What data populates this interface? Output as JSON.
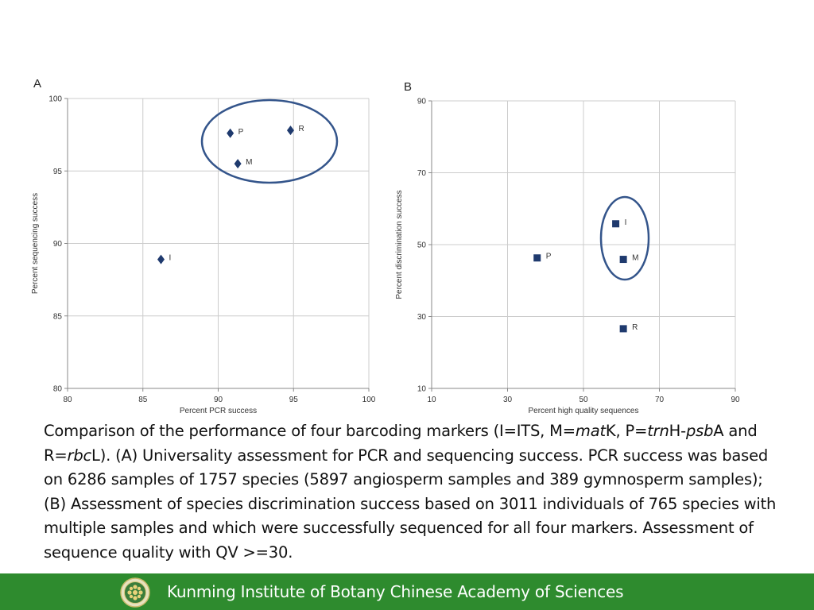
{
  "chart_data": [
    {
      "type": "scatter",
      "panel_label": "A",
      "xlabel": "Percent PCR success",
      "ylabel": "Percent sequencing success",
      "xlim": [
        80,
        100
      ],
      "ylim": [
        80,
        100
      ],
      "xticks": [
        80,
        85,
        90,
        95,
        100
      ],
      "yticks": [
        80,
        85,
        90,
        95,
        100
      ],
      "grid": true,
      "marker": "diamond",
      "points": [
        {
          "label": "P",
          "x": 90.8,
          "y": 97.6
        },
        {
          "label": "R",
          "x": 94.8,
          "y": 97.8
        },
        {
          "label": "M",
          "x": 91.3,
          "y": 95.5
        },
        {
          "label": "I",
          "x": 86.2,
          "y": 88.9
        }
      ],
      "highlight_ellipse_labels": [
        "P",
        "R",
        "M"
      ]
    },
    {
      "type": "scatter",
      "panel_label": "B",
      "xlabel": "Percent high quality sequences",
      "ylabel": "Percent discrimination success",
      "xlim": [
        10,
        90
      ],
      "ylim": [
        10,
        90
      ],
      "xticks": [
        10,
        30,
        50,
        70,
        90
      ],
      "yticks": [
        10,
        30,
        50,
        70,
        90
      ],
      "grid": true,
      "marker": "square",
      "points": [
        {
          "label": "I",
          "x": 58.5,
          "y": 55.8
        },
        {
          "label": "P",
          "x": 37.8,
          "y": 46.3
        },
        {
          "label": "M",
          "x": 60.5,
          "y": 45.9
        },
        {
          "label": "R",
          "x": 60.5,
          "y": 26.6
        }
      ],
      "highlight_ellipse_labels": [
        "I",
        "M"
      ]
    }
  ],
  "colors": {
    "marker": "#1f3a6e",
    "ellipse": "#34558b",
    "grid": "#cccccc",
    "axis": "#888888",
    "footer_bg": "#2e8b2e"
  },
  "caption": {
    "t1": "Comparison of the performance of four barcoding markers (I=ITS, M=",
    "i1": "mat",
    "t2": "K, P=",
    "i2": "trn",
    "t3": "H-",
    "i3": "psb",
    "t4": "A and R=",
    "i4": "rbc",
    "t5": "L). (A) Universality assessment for PCR and sequencing success. PCR success was based on 6286 samples of 1757 species (5897 angiosperm samples and 389 gymnosperm samples); (B) Assessment of species discrimination success based on 3011 individuals of 765 species with multiple samples and which were successfully sequenced for all four markers. Assessment of sequence quality with QV >=30."
  },
  "footer": {
    "text": "Kunming Institute of Botany Chinese Academy of Sciences",
    "logo_icon": "institute-seal-icon"
  }
}
